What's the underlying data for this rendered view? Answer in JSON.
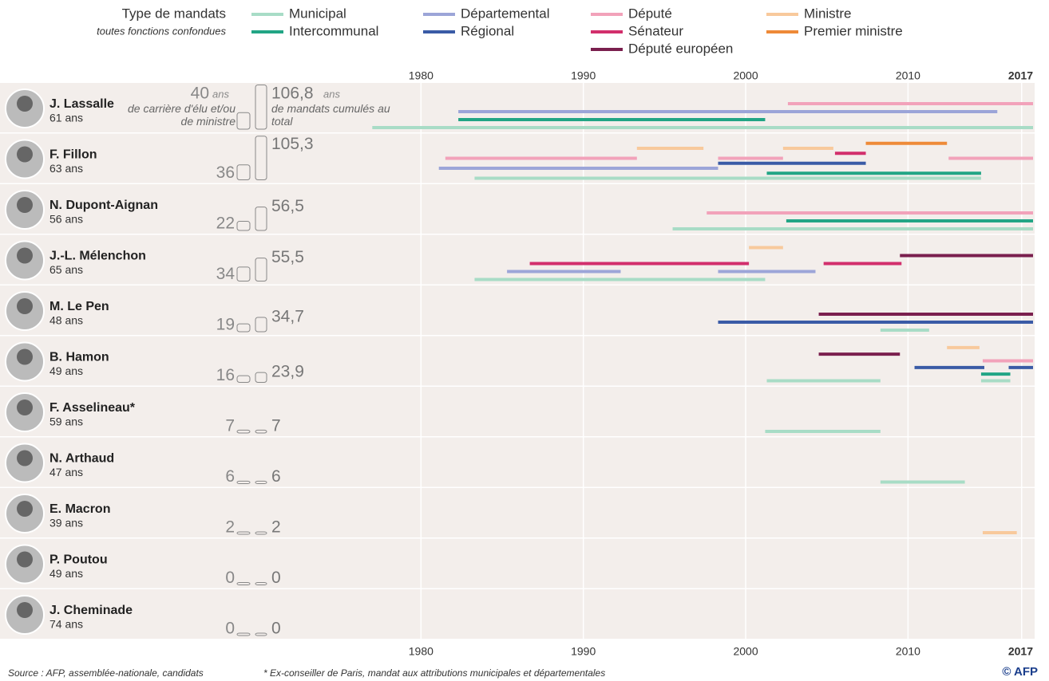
{
  "chart_data": {
    "type": "timeline",
    "legend_title": "Type de mandats",
    "legend_subtitle": "toutes fonctions confondues",
    "mandate_types": [
      {
        "name": "Municipal",
        "color": "#a8dcc6"
      },
      {
        "name": "Intercommunal",
        "color": "#22a585"
      },
      {
        "name": "Départemental",
        "color": "#9ca5d8"
      },
      {
        "name": "Régional",
        "color": "#3a5ba6"
      },
      {
        "name": "Député",
        "color": "#f2a2ba"
      },
      {
        "name": "Sénateur",
        "color": "#d22f6c"
      },
      {
        "name": "Député européen",
        "color": "#7a1f4e"
      },
      {
        "name": "Ministre",
        "color": "#f8c99c"
      },
      {
        "name": "Premier ministre",
        "color": "#ee8a38"
      }
    ],
    "xlim": [
      1976,
      2017.7
    ],
    "xticks": [
      1980,
      1990,
      2000,
      2010,
      2017
    ],
    "unit": "ans",
    "career_note": "de carrière d'élu et/ou de ministre",
    "cumul_note": "de mandats cumulés au total",
    "candidates": [
      {
        "name": "J. Lassalle",
        "age": "61 ans",
        "career": 40,
        "cumul": 106.8,
        "cumul_label": "106,8",
        "mandates": [
          {
            "type": 4,
            "start": 2002.6,
            "end": 2017.7
          },
          {
            "type": 2,
            "start": 1982.3,
            "end": 2015.5
          },
          {
            "type": 1,
            "start": 1982.3,
            "end": 2001.2
          },
          {
            "type": 0,
            "start": 1977,
            "end": 2017.7
          }
        ]
      },
      {
        "name": "F. Fillon",
        "age": "63 ans",
        "career": 36,
        "cumul": 105.3,
        "cumul_label": "105,3",
        "mandates": [
          {
            "type": 7,
            "start": 1993.3,
            "end": 1997.4
          },
          {
            "type": 7,
            "start": 2002.3,
            "end": 2005.4
          },
          {
            "type": 8,
            "start": 2007.4,
            "end": 2012.4
          },
          {
            "type": 5,
            "start": 2005.5,
            "end": 2007.4
          },
          {
            "type": 4,
            "start": 1981.5,
            "end": 1993.3
          },
          {
            "type": 4,
            "start": 1998.3,
            "end": 2002.3
          },
          {
            "type": 4,
            "start": 2012.5,
            "end": 2017.7
          },
          {
            "type": 3,
            "start": 1998.3,
            "end": 2007.4
          },
          {
            "type": 2,
            "start": 1981.1,
            "end": 1998.3
          },
          {
            "type": 1,
            "start": 2001.3,
            "end": 2014.5
          },
          {
            "type": 0,
            "start": 1983.3,
            "end": 2014.5
          }
        ]
      },
      {
        "name": "N. Dupont-Aignan",
        "age": "56 ans",
        "career": 22,
        "cumul": 56.5,
        "cumul_label": "56,5",
        "mandates": [
          {
            "type": 4,
            "start": 1997.6,
            "end": 2017.7
          },
          {
            "type": 1,
            "start": 2002.5,
            "end": 2017.7
          },
          {
            "type": 0,
            "start": 1995.5,
            "end": 2017.7
          }
        ]
      },
      {
        "name": "J.-L. Mélenchon",
        "age": "65 ans",
        "career": 34,
        "cumul": 55.5,
        "cumul_label": "55,5",
        "mandates": [
          {
            "type": 7,
            "start": 2000.2,
            "end": 2002.3
          },
          {
            "type": 6,
            "start": 2009.5,
            "end": 2017.7
          },
          {
            "type": 5,
            "start": 1986.7,
            "end": 2000.2
          },
          {
            "type": 5,
            "start": 2004.8,
            "end": 2009.6
          },
          {
            "type": 2,
            "start": 1985.3,
            "end": 1992.3
          },
          {
            "type": 2,
            "start": 1998.3,
            "end": 2004.3
          },
          {
            "type": 0,
            "start": 1983.3,
            "end": 2001.2
          }
        ]
      },
      {
        "name": "M. Le Pen",
        "age": "48 ans",
        "career": 19,
        "cumul": 34.7,
        "cumul_label": "34,7",
        "mandates": [
          {
            "type": 6,
            "start": 2004.5,
            "end": 2017.7
          },
          {
            "type": 3,
            "start": 1998.3,
            "end": 2017.7
          },
          {
            "type": 0,
            "start": 2008.3,
            "end": 2011.3
          }
        ]
      },
      {
        "name": "B. Hamon",
        "age": "49 ans",
        "career": 16,
        "cumul": 23.9,
        "cumul_label": "23,9",
        "mandates": [
          {
            "type": 7,
            "start": 2012.4,
            "end": 2014.4
          },
          {
            "type": 6,
            "start": 2004.5,
            "end": 2009.5
          },
          {
            "type": 4,
            "start": 2014.6,
            "end": 2017.7
          },
          {
            "type": 3,
            "start": 2010.4,
            "end": 2014.7
          },
          {
            "type": 3,
            "start": 2016.2,
            "end": 2017.7
          },
          {
            "type": 1,
            "start": 2014.5,
            "end": 2016.3
          },
          {
            "type": 0,
            "start": 2001.3,
            "end": 2008.3
          },
          {
            "type": 0,
            "start": 2014.5,
            "end": 2016.3
          }
        ]
      },
      {
        "name": "F. Asselineau*",
        "age": "59 ans",
        "career": 7,
        "cumul": 7,
        "mandates": [
          {
            "type": 0,
            "start": 2001.2,
            "end": 2008.3
          }
        ]
      },
      {
        "name": "N. Arthaud",
        "age": "47 ans",
        "career": 6,
        "cumul": 6,
        "mandates": [
          {
            "type": 0,
            "start": 2008.3,
            "end": 2013.5
          }
        ]
      },
      {
        "name": "E. Macron",
        "age": "39 ans",
        "career": 2,
        "cumul": 2,
        "mandates": [
          {
            "type": 7,
            "start": 2014.6,
            "end": 2016.7
          }
        ]
      },
      {
        "name": "P. Poutou",
        "age": "49 ans",
        "career": 0,
        "cumul": 0,
        "mandates": []
      },
      {
        "name": "J. Cheminade",
        "age": "74 ans",
        "career": 0,
        "cumul": 0,
        "mandates": []
      }
    ],
    "source": "Source : AFP, assemblée-nationale, candidats",
    "footnote": "* Ex-conseiller de Paris, mandat aux attributions municipales et départementales",
    "credit": "© AFP"
  }
}
